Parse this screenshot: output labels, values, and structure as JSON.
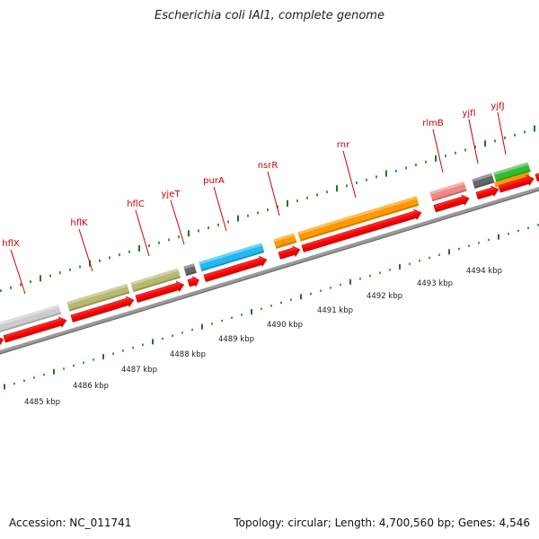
{
  "title": "Escherichia coli IAI1, complete genome",
  "accession": "Accession: NC_011741",
  "topology": "Topology: circular; Length: 4,700,560 bp; Genes: 4,546",
  "colors": {
    "backbone": "#8a8a8a",
    "cds": "#ff0000",
    "label": "#cc0000",
    "tick": "#1a7a1a",
    "olive": "#b8b870",
    "gray_light": "#cccccc",
    "gray_dark": "#666666",
    "sky": "#22b8f0",
    "orange": "#ff9900",
    "pink": "#ee8888",
    "green": "#33bb33"
  },
  "scale_labels": [
    "4485 kbp",
    "4486 kbp",
    "4487 kbp",
    "4488 kbp",
    "4489 kbp",
    "4490 kbp",
    "4491 kbp",
    "4492 kbp",
    "4493 kbp",
    "4494 kbp"
  ],
  "genes": [
    {
      "name": "hflX",
      "color": "gray_light"
    },
    {
      "name": "hflK",
      "color": "olive"
    },
    {
      "name": "hflC",
      "color": "olive"
    },
    {
      "name": "yjeT",
      "color": "gray_dark"
    },
    {
      "name": "purA",
      "color": "sky"
    },
    {
      "name": "nsrR",
      "color": "orange"
    },
    {
      "name": "rnr",
      "color": "orange"
    },
    {
      "name": "rlmB",
      "color": "pink"
    },
    {
      "name": "yjfI",
      "color": "gray_dark"
    },
    {
      "name": "yjfJ",
      "color": "green"
    }
  ]
}
